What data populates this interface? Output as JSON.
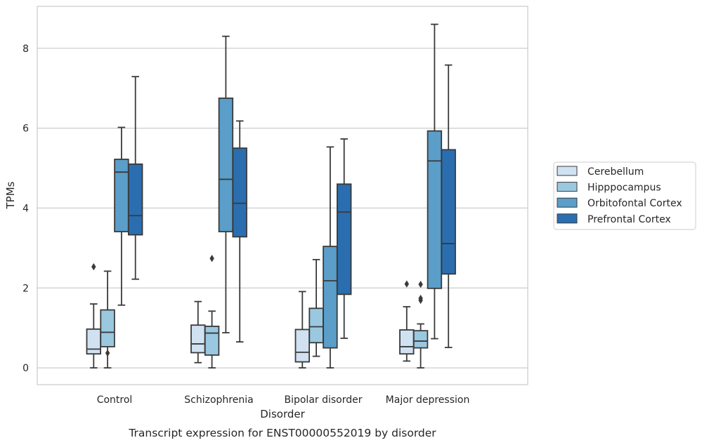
{
  "chart_data": {
    "type": "box",
    "title": "",
    "caption": "Transcript expression for ENST00000552019 by disorder",
    "xlabel": "Disorder",
    "ylabel": "TPMs",
    "ylim": [
      -0.42,
      9.05
    ],
    "yticks": [
      0,
      2,
      4,
      6,
      8
    ],
    "grid": "horizontal",
    "legend_position": "right",
    "categories": [
      "Control",
      "Schizophrenia",
      "Bipolar disorder",
      "Major depression"
    ],
    "series": [
      {
        "name": "Cerebellum",
        "color": "#d0e1f2",
        "boxes": [
          {
            "whisker_low": 0.0,
            "q1": 0.35,
            "median": 0.47,
            "q3": 0.97,
            "whisker_high": 1.6,
            "outliers": [
              2.53
            ]
          },
          {
            "whisker_low": 0.13,
            "q1": 0.38,
            "median": 0.6,
            "q3": 1.07,
            "whisker_high": 1.66,
            "outliers": []
          },
          {
            "whisker_low": 0.0,
            "q1": 0.15,
            "median": 0.39,
            "q3": 0.96,
            "whisker_high": 1.91,
            "outliers": []
          },
          {
            "whisker_low": 0.17,
            "q1": 0.35,
            "median": 0.53,
            "q3": 0.95,
            "whisker_high": 1.53,
            "outliers": [
              2.1
            ]
          }
        ]
      },
      {
        "name": "Hipppocampus",
        "color": "#9ac8e0",
        "boxes": [
          {
            "whisker_low": 0.0,
            "q1": 0.53,
            "median": 0.89,
            "q3": 1.45,
            "whisker_high": 2.42,
            "outliers": [
              0.37
            ]
          },
          {
            "whisker_low": 0.0,
            "q1": 0.32,
            "median": 0.87,
            "q3": 1.04,
            "whisker_high": 1.42,
            "outliers": [
              2.74
            ]
          },
          {
            "whisker_low": 0.29,
            "q1": 0.63,
            "median": 1.03,
            "q3": 1.49,
            "whisker_high": 2.71,
            "outliers": []
          },
          {
            "whisker_low": 0.0,
            "q1": 0.5,
            "median": 0.67,
            "q3": 0.93,
            "whisker_high": 1.1,
            "outliers": [
              2.09,
              1.74,
              1.69
            ]
          }
        ]
      },
      {
        "name": "Orbitofontal Cortex",
        "color": "#5a9ec9",
        "boxes": [
          {
            "whisker_low": 1.57,
            "q1": 3.41,
            "median": 4.9,
            "q3": 5.22,
            "whisker_high": 6.02,
            "outliers": []
          },
          {
            "whisker_low": 0.88,
            "q1": 3.41,
            "median": 4.72,
            "q3": 6.75,
            "whisker_high": 8.3,
            "outliers": []
          },
          {
            "whisker_low": 0.0,
            "q1": 0.5,
            "median": 2.18,
            "q3": 3.04,
            "whisker_high": 5.53,
            "outliers": []
          },
          {
            "whisker_low": 0.73,
            "q1": 1.99,
            "median": 5.18,
            "q3": 5.93,
            "whisker_high": 8.6,
            "outliers": []
          }
        ]
      },
      {
        "name": "Prefrontal Cortex",
        "color": "#2a6eb0",
        "boxes": [
          {
            "whisker_low": 2.22,
            "q1": 3.33,
            "median": 3.81,
            "q3": 5.1,
            "whisker_high": 7.29,
            "outliers": []
          },
          {
            "whisker_low": 0.65,
            "q1": 3.28,
            "median": 4.12,
            "q3": 5.5,
            "whisker_high": 6.18,
            "outliers": []
          },
          {
            "whisker_low": 0.74,
            "q1": 1.84,
            "median": 3.9,
            "q3": 4.6,
            "whisker_high": 5.73,
            "outliers": []
          },
          {
            "whisker_low": 0.51,
            "q1": 2.35,
            "median": 3.11,
            "q3": 5.46,
            "whisker_high": 7.58,
            "outliers": []
          }
        ]
      }
    ]
  }
}
